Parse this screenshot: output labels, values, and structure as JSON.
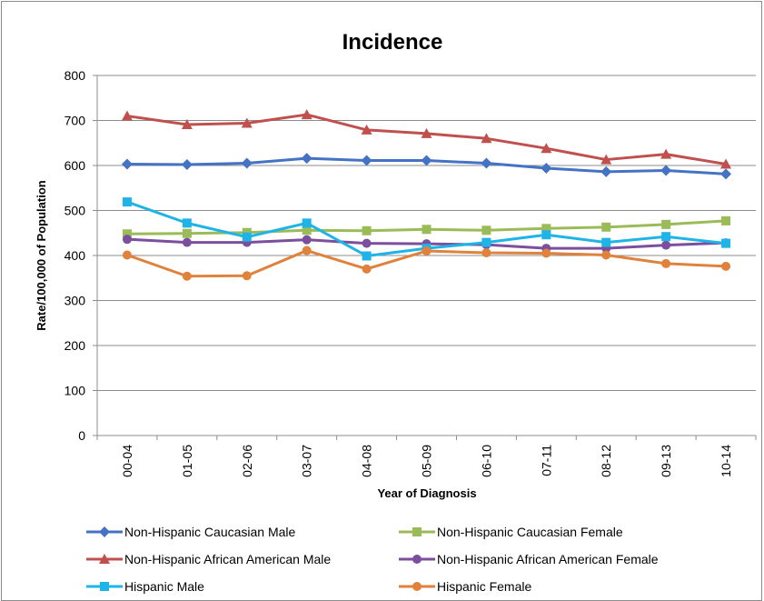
{
  "chart_data": {
    "type": "line",
    "title": "Incidence",
    "xlabel": "Year of Diagnosis",
    "ylabel": "Rate/100,000 of Population",
    "ylim": [
      0,
      800
    ],
    "yticks": [
      0,
      100,
      200,
      300,
      400,
      500,
      600,
      700,
      800
    ],
    "grid": true,
    "legend_position": "bottom",
    "categories": [
      "00-04",
      "01-05",
      "02-06",
      "03-07",
      "04-08",
      "05-09",
      "06-10",
      "07-11",
      "08-12",
      "09-13",
      "10-14"
    ],
    "series": [
      {
        "name": "Non-Hispanic Caucasian Male",
        "color": "#4472C4",
        "marker": "diamond",
        "values": [
          603,
          602,
          605,
          616,
          611,
          611,
          605,
          594,
          586,
          589,
          581
        ]
      },
      {
        "name": "Non-Hispanic Caucasian Female",
        "color": "#9BBB59",
        "marker": "square",
        "values": [
          448,
          449,
          451,
          456,
          455,
          458,
          456,
          460,
          463,
          469,
          477
        ]
      },
      {
        "name": "Non-Hispanic African American Male",
        "color": "#C0504D",
        "marker": "triangle",
        "values": [
          710,
          691,
          694,
          713,
          679,
          671,
          660,
          638,
          613,
          625,
          603
        ]
      },
      {
        "name": "Non-Hispanic African American Female",
        "color": "#7B4F9D",
        "marker": "circle",
        "values": [
          436,
          429,
          429,
          435,
          427,
          426,
          424,
          416,
          416,
          423,
          428
        ]
      },
      {
        "name": "Hispanic Male",
        "color": "#1FB4E8",
        "marker": "square",
        "values": [
          519,
          472,
          441,
          472,
          399,
          416,
          429,
          446,
          429,
          442,
          427
        ]
      },
      {
        "name": "Hispanic Female",
        "color": "#E0823C",
        "marker": "circle",
        "values": [
          401,
          354,
          355,
          411,
          370,
          410,
          406,
          405,
          401,
          382,
          376
        ]
      }
    ]
  }
}
